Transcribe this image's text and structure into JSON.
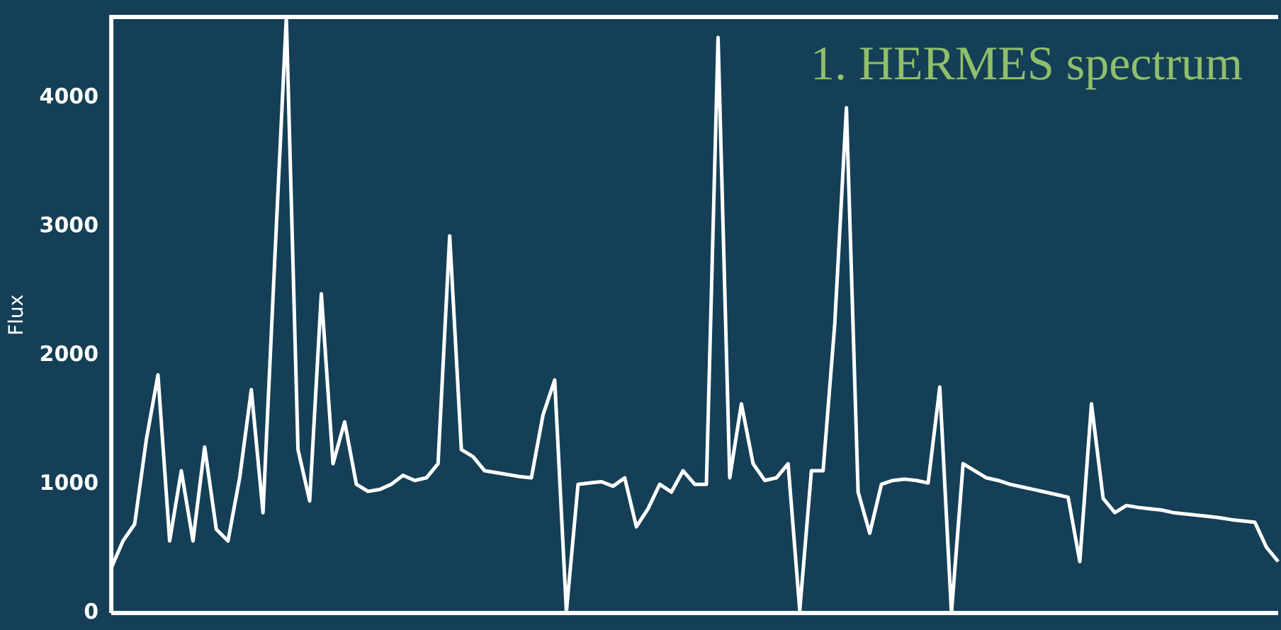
{
  "chart_data": {
    "type": "line",
    "title": "1. HERMES spectrum",
    "ylabel": "Flux",
    "color": "#ffffff",
    "grid": false,
    "tick_labels": "y",
    "marker": "none",
    "line_style": "solid",
    "categories": [
      null,
      null,
      null,
      null,
      null,
      null,
      null,
      null,
      null,
      null,
      null,
      null,
      null,
      null,
      null,
      null,
      null,
      null,
      null,
      null,
      null,
      null,
      null,
      null,
      null,
      null,
      null,
      null,
      null,
      null,
      null,
      null,
      null,
      null,
      null,
      null,
      null,
      null,
      null,
      null,
      null,
      null,
      null,
      null,
      null,
      null,
      null,
      null,
      null,
      null,
      null,
      null,
      null,
      null,
      null,
      null,
      null,
      null,
      null,
      null,
      null,
      null,
      null,
      null,
      null,
      null,
      null,
      null,
      null,
      null,
      null,
      null,
      null,
      null,
      null,
      null,
      null,
      null,
      null,
      null,
      null,
      null,
      null,
      null,
      null,
      null,
      null,
      null,
      null,
      null,
      null,
      null,
      null,
      null,
      null,
      null,
      null,
      null,
      null,
      null,
      null
    ],
    "values": [
      350,
      560,
      690,
      1345,
      1850,
      560,
      1105,
      560,
      1290,
      650,
      560,
      1050,
      1735,
      780,
      2730,
      4630,
      1270,
      870,
      2480,
      1160,
      1485,
      1000,
      945,
      960,
      1000,
      1070,
      1030,
      1050,
      1160,
      2930,
      1270,
      1215,
      1105,
      1090,
      1075,
      1060,
      1050,
      1540,
      1810,
      10,
      1000,
      1010,
      1020,
      985,
      1050,
      670,
      810,
      1000,
      940,
      1105,
      1000,
      1000,
      4470,
      1050,
      1625,
      1160,
      1030,
      1050,
      1160,
      20,
      1105,
      1105,
      2245,
      3925,
      940,
      620,
      1000,
      1030,
      1040,
      1030,
      1010,
      1755,
      0,
      1160,
      1105,
      1050,
      1030,
      1000,
      980,
      960,
      940,
      920,
      900,
      400,
      1625,
      890,
      780,
      835,
      820,
      810,
      800,
      780,
      770,
      760,
      750,
      740,
      725,
      715,
      705,
      510,
      400
    ],
    "ylim": [
      0,
      4630
    ],
    "yticks": [
      0,
      1000,
      2000,
      3000,
      4000
    ]
  }
}
